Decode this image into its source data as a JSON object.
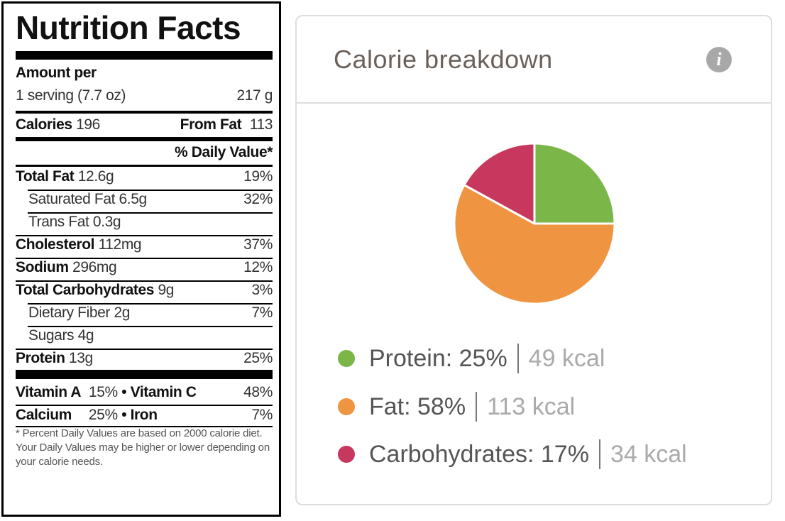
{
  "nutrition": {
    "title": "Nutrition Facts",
    "amount_per": "Amount per",
    "serving": {
      "label": "1 serving (7.7 oz)",
      "weight": "217 g"
    },
    "calories": {
      "label": "Calories",
      "value": "196",
      "from_fat_label": "From Fat",
      "from_fat_value": "113"
    },
    "daily_value_header": "% Daily Value*",
    "rows": [
      {
        "label": "Total Fat",
        "amount": "12.6g",
        "pct": "19%"
      },
      {
        "label": "Saturated Fat",
        "amount": "6.5g",
        "pct": "32%"
      },
      {
        "label": "Trans Fat",
        "amount": "0.3g",
        "pct": ""
      },
      {
        "label": "Cholesterol",
        "amount": "112mg",
        "pct": "37%"
      },
      {
        "label": "Sodium",
        "amount": "296mg",
        "pct": "12%"
      },
      {
        "label": "Total Carbohydrates",
        "amount": "9g",
        "pct": "3%"
      },
      {
        "label": "Dietary Fiber",
        "amount": "2g",
        "pct": "7%"
      },
      {
        "label": "Sugars",
        "amount": "4g",
        "pct": ""
      },
      {
        "label": "Protein",
        "amount": "13g",
        "pct": "25%"
      }
    ],
    "vitamins": {
      "vitamin_a": {
        "label": "Vitamin A",
        "pct": "15%"
      },
      "vitamin_c": {
        "label": "Vitamin C",
        "pct": "48%"
      },
      "calcium": {
        "label": "Calcium",
        "pct": "25%"
      },
      "iron": {
        "label": "Iron",
        "pct": "7%"
      },
      "bullet": "•"
    },
    "footnote": "* Percent Daily Values are based on 2000 calorie diet. Your Daily Values may be higher or lower depending on your calorie needs."
  },
  "breakdown": {
    "title": "Calorie breakdown",
    "info_icon": "info-icon",
    "info_glyph": "i"
  },
  "chart_data": {
    "type": "pie",
    "title": "Calorie breakdown",
    "slices": [
      {
        "name": "Protein",
        "percent": 25,
        "kcal": 49,
        "color": "#7ab648"
      },
      {
        "name": "Fat",
        "percent": 58,
        "kcal": 113,
        "color": "#ef9440"
      },
      {
        "name": "Carbohydrates",
        "percent": 17,
        "kcal": 34,
        "color": "#c8375e"
      }
    ],
    "legend": [
      {
        "label": "Protein: 25%",
        "kcal": "49 kcal"
      },
      {
        "label": "Fat: 58%",
        "kcal": "113 kcal"
      },
      {
        "label": "Carbohydrates: 17%",
        "kcal": "34 kcal"
      }
    ],
    "legend_position": "bottom"
  }
}
